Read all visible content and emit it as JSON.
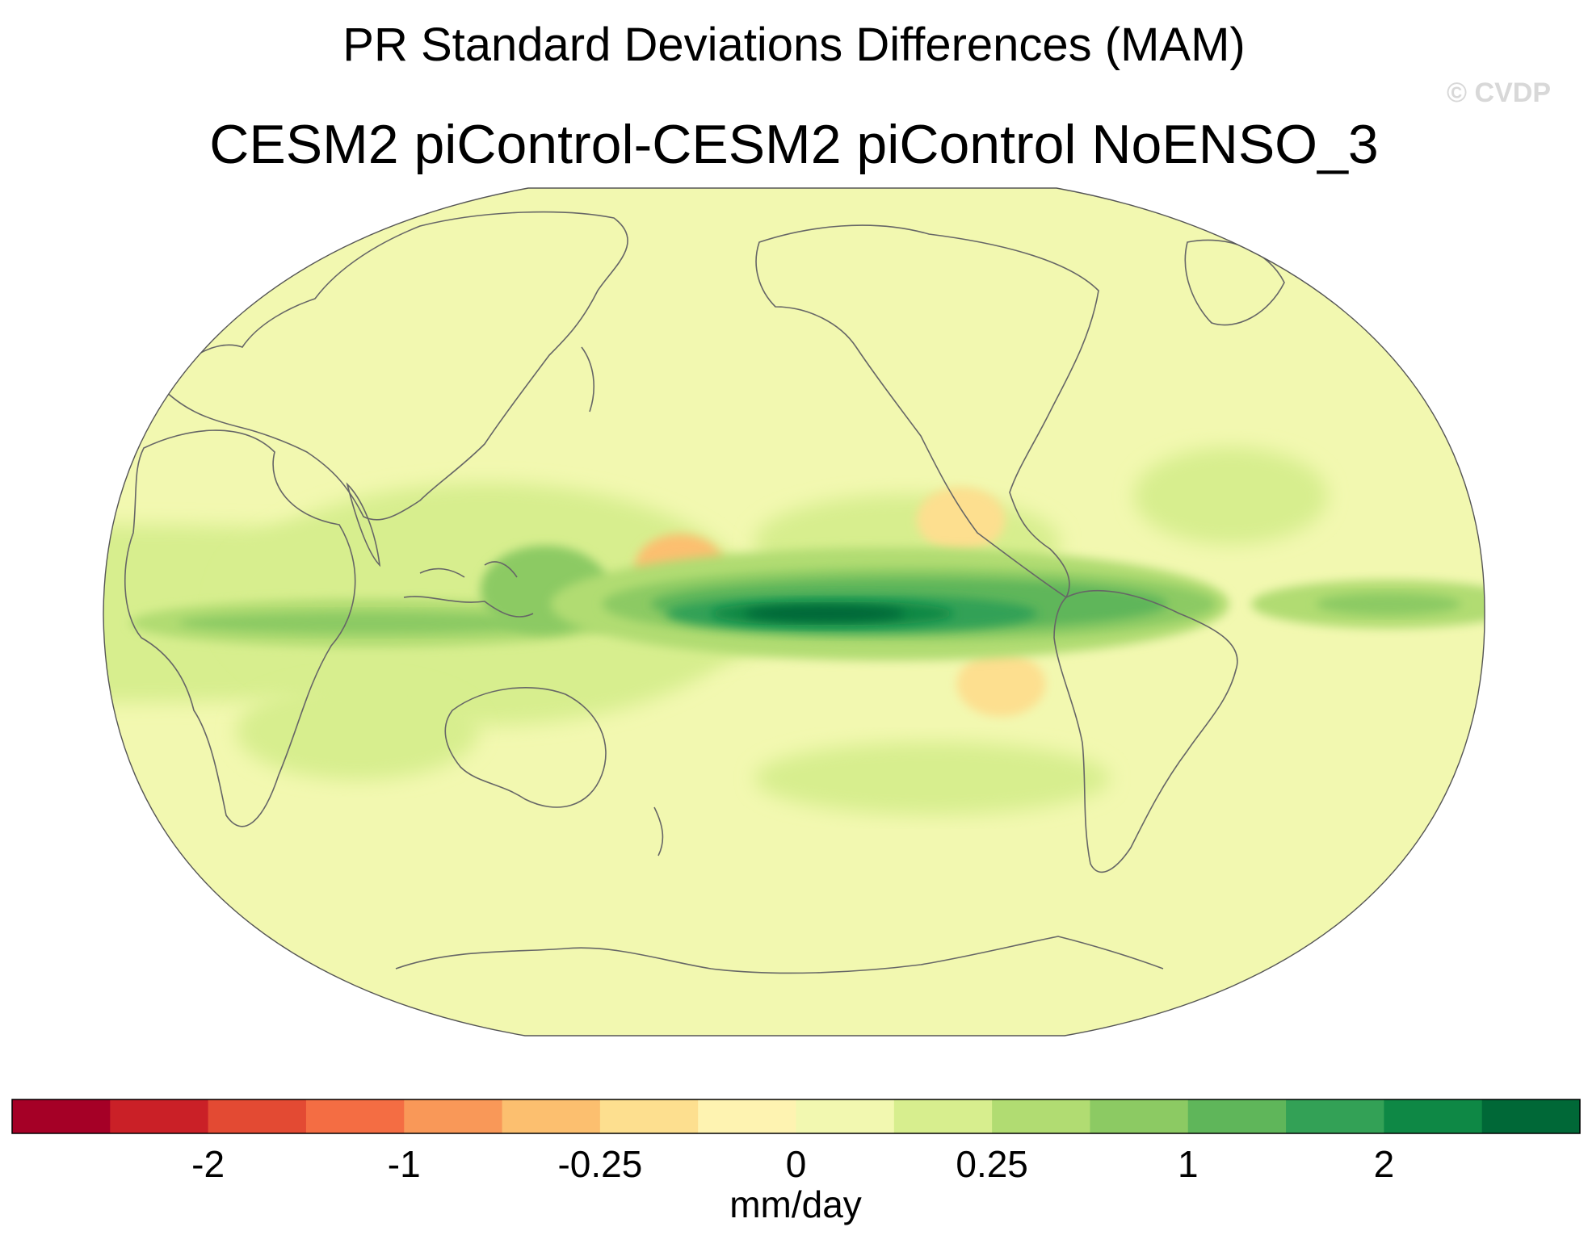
{
  "watermark": "© CVDP",
  "chart_data": {
    "type": "heatmap",
    "title": "PR Standard Deviations Differences (MAM)",
    "subtitle": "CESM2 piControl-CESM2 piControl NoENSO_3",
    "projection": "Robinson (global map, continents outlined)",
    "colorbar": {
      "units": "mm/day",
      "levels": [
        -3,
        -2,
        -1.5,
        -1,
        -0.5,
        -0.25,
        -0.1,
        0,
        0.1,
        0.25,
        0.5,
        1,
        1.5,
        2,
        3
      ],
      "tick_labels": [
        "-2",
        "-1",
        "-0.25",
        "0",
        "0.25",
        "1",
        "2"
      ],
      "tick_values": [
        -2,
        -1,
        -0.25,
        0,
        0.25,
        1,
        2
      ],
      "colors": [
        "#a50026",
        "#ca2027",
        "#e34a33",
        "#f46d43",
        "#f99858",
        "#fcbf6f",
        "#fddf8f",
        "#fef3b1",
        "#f2f8b0",
        "#d7ee8e",
        "#b1dc72",
        "#8cca63",
        "#5fb65a",
        "#33a156",
        "#0e8845",
        "#006837"
      ]
    },
    "features": [
      {
        "name": "equatorial-pacific-maximum",
        "lat": 0,
        "lon": -170,
        "value": 3
      },
      {
        "name": "central-pacific-band",
        "lat": 2,
        "lon": -140,
        "value": 1.5
      },
      {
        "name": "indian-ocean-band",
        "lat": -2,
        "lon": 70,
        "value": 0.5
      },
      {
        "name": "maritime-continent",
        "lat": 5,
        "lon": 115,
        "value": 0.75
      },
      {
        "name": "atlantic-itcz",
        "lat": 2,
        "lon": -25,
        "value": 0.5
      },
      {
        "name": "north-pacific-dry",
        "lat": 20,
        "lon": -135,
        "value": -0.2
      },
      {
        "name": "south-pacific-dry",
        "lat": -15,
        "lon": -125,
        "value": -0.2
      },
      {
        "name": "nw-pacific-dry",
        "lat": 10,
        "lon": 150,
        "value": -0.5
      }
    ]
  }
}
